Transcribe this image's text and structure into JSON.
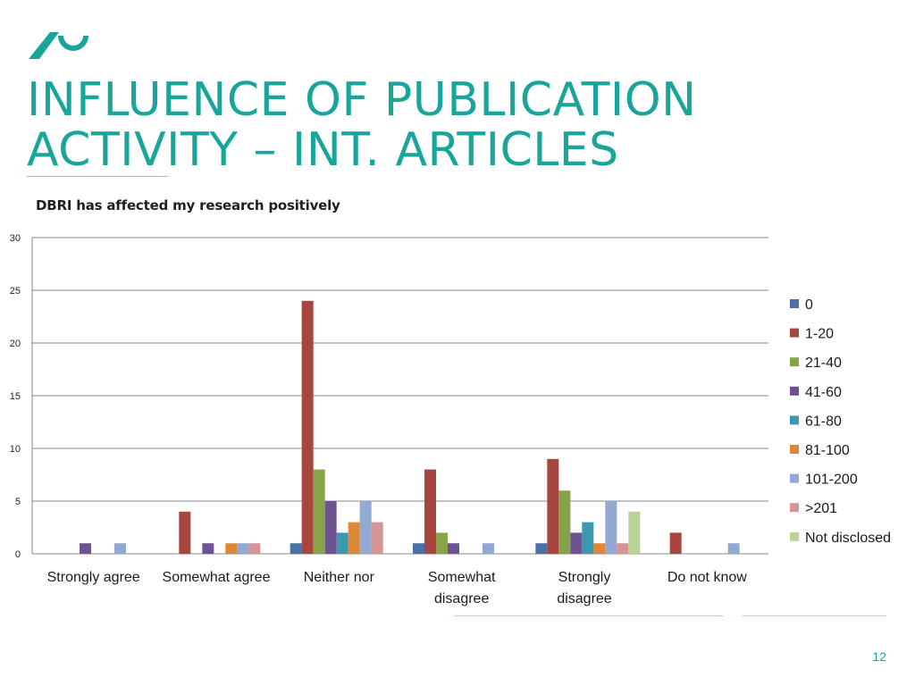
{
  "slide": {
    "title_line1": "INFLUENCE OF PUBLICATION",
    "title_line2": "ACTIVITY – INT. ARTICLES",
    "page_number": "12",
    "accent_color": "#1aa59a"
  },
  "chart_data": {
    "type": "bar",
    "title": "DBRI has affected my research positively",
    "xlabel": "",
    "ylabel": "",
    "ylim": [
      0,
      30
    ],
    "yticks": [
      0,
      5,
      10,
      15,
      20,
      25,
      30
    ],
    "grid": true,
    "legend_position": "right",
    "categories": [
      [
        "Strongly agree"
      ],
      [
        "Somewhat agree"
      ],
      [
        "Neither nor"
      ],
      [
        "Somewhat",
        "disagree"
      ],
      [
        "Strongly",
        "disagree"
      ],
      [
        "Do not know"
      ]
    ],
    "series": [
      {
        "name": "0",
        "color": "#4a72a8",
        "values": [
          0,
          0,
          1,
          1,
          1,
          0
        ]
      },
      {
        "name": "1-20",
        "color": "#a8453f",
        "values": [
          0,
          4,
          24,
          8,
          9,
          2
        ]
      },
      {
        "name": "21-40",
        "color": "#86a447",
        "values": [
          0,
          0,
          8,
          2,
          6,
          0
        ]
      },
      {
        "name": "41-60",
        "color": "#6d5392",
        "values": [
          1,
          1,
          5,
          1,
          2,
          0
        ]
      },
      {
        "name": "61-80",
        "color": "#3c98b0",
        "values": [
          0,
          0,
          2,
          0,
          3,
          0
        ]
      },
      {
        "name": "81-100",
        "color": "#dd8838",
        "values": [
          0,
          1,
          3,
          0,
          1,
          0
        ]
      },
      {
        "name": "101-200",
        "color": "#92a9d4",
        "values": [
          1,
          1,
          5,
          1,
          5,
          1
        ]
      },
      {
        "name": ">201",
        "color": "#d49694",
        "values": [
          0,
          1,
          3,
          0,
          1,
          0
        ]
      },
      {
        "name": "Not disclosed",
        "color": "#b8d395",
        "values": [
          0,
          0,
          0,
          0,
          4,
          0
        ]
      }
    ]
  }
}
